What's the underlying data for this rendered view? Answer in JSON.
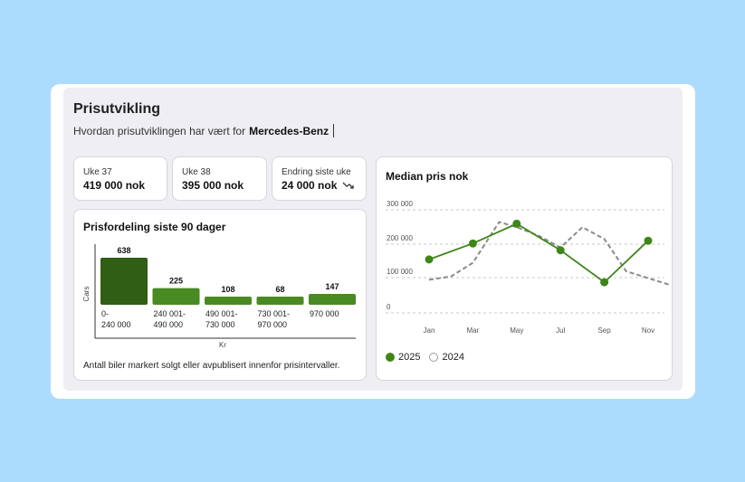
{
  "header": {
    "title": "Prisutvikling",
    "subtitle": "Hvordan prisutviklingen har vært for",
    "brand": "Mercedes-Benz"
  },
  "stats": [
    {
      "label": "Uke 37",
      "value": "419 000 nok"
    },
    {
      "label": "Uke 38",
      "value": "395 000 nok"
    },
    {
      "label": "Endring siste uke",
      "value": "24 000 nok",
      "trend_icon": "trend-down-icon"
    }
  ],
  "distribution": {
    "title": "Prisfordeling siste 90 dager",
    "footnote": "Antall biler markert solgt eller avpublisert innenfor prisintervaller.",
    "chart_data": {
      "type": "bar",
      "ylabel": "Cars",
      "xlabel": "Kr",
      "categories": [
        [
          "0-",
          "240 000"
        ],
        [
          "240 001-",
          "490 000"
        ],
        [
          "490 001-",
          "730 000"
        ],
        [
          "730 001-",
          "970 000"
        ],
        [
          "970 000"
        ]
      ],
      "values": [
        638,
        225,
        108,
        68,
        147
      ],
      "value_labels": [
        "638",
        "225",
        "108",
        "68",
        "147"
      ],
      "colors": [
        "#2f5e14",
        "#4a8a22",
        "#4a8a22",
        "#4a8a22",
        "#4a8a22"
      ]
    }
  },
  "median": {
    "title": "Median pris nok",
    "chart_data": {
      "type": "line",
      "x": [
        "Jan",
        "Mar",
        "May",
        "Jul",
        "Sep",
        "Nov"
      ],
      "yticks": [
        "300 000",
        "200 000",
        "100 000",
        "0"
      ],
      "ylim": [
        0,
        300000
      ],
      "grid": true,
      "legend": "bottom-left",
      "series": [
        {
          "name": "2025",
          "color": "#3e8618",
          "style": "solid",
          "markers": true,
          "points": [
            [
              1,
              120000
            ],
            [
              2,
              167000
            ],
            [
              3,
              225000
            ],
            [
              4,
              147000
            ],
            [
              5,
              53000
            ],
            [
              6,
              175000
            ]
          ]
        },
        {
          "name": "2024",
          "color": "#8a8a8a",
          "style": "dashed",
          "markers": false,
          "points": [
            [
              1,
              60000
            ],
            [
              1.5,
              70000
            ],
            [
              2,
              110000
            ],
            [
              2.6,
              230000
            ],
            [
              3,
              215000
            ],
            [
              3.5,
              190000
            ],
            [
              4,
              155000
            ],
            [
              4.5,
              215000
            ],
            [
              5,
              180000
            ],
            [
              5.5,
              85000
            ],
            [
              6,
              65000
            ],
            [
              6.5,
              45000
            ]
          ]
        }
      ]
    }
  }
}
